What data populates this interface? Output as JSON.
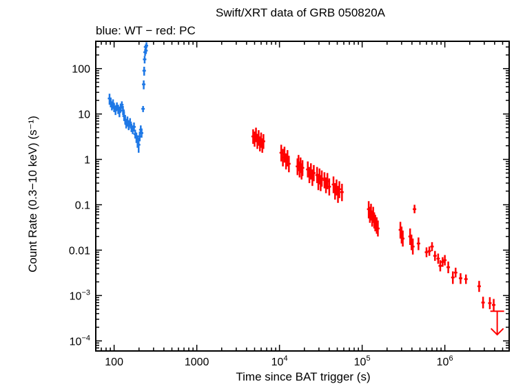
{
  "chart_data": {
    "type": "scatter",
    "title": "Swift/XRT data of GRB 050820A",
    "subtitle": "blue: WT − red: PC",
    "xlabel": "Time since BAT trigger (s)",
    "ylabel": "Count Rate (0.3−10 keV) (s⁻¹)",
    "xscale": "log",
    "yscale": "log",
    "xlim": [
      60,
      6000000
    ],
    "ylim": [
      6e-05,
      400
    ],
    "x_ticks": [
      {
        "value": 100,
        "label": "100"
      },
      {
        "value": 1000,
        "label": "1000"
      },
      {
        "value": 10000,
        "base": "10",
        "exp": "4"
      },
      {
        "value": 100000,
        "base": "10",
        "exp": "5"
      },
      {
        "value": 1000000,
        "base": "10",
        "exp": "6"
      }
    ],
    "y_ticks": [
      {
        "value": 100,
        "label": "100"
      },
      {
        "value": 10,
        "label": "10"
      },
      {
        "value": 1,
        "label": "1"
      },
      {
        "value": 0.1,
        "label": "0.1"
      },
      {
        "value": 0.01,
        "label": "0.01"
      },
      {
        "value": 0.001,
        "base": "10",
        "exp": "−3"
      },
      {
        "value": 0.0001,
        "base": "10",
        "exp": "−4"
      }
    ],
    "series": [
      {
        "name": "WT",
        "color": "#1e78e6",
        "points": [
          [
            88,
            22,
            16,
            28
          ],
          [
            91,
            18,
            14,
            23
          ],
          [
            94,
            15,
            12,
            19
          ],
          [
            97,
            17,
            13,
            21
          ],
          [
            100,
            14,
            11,
            17
          ],
          [
            104,
            12,
            9.5,
            15
          ],
          [
            108,
            15,
            12,
            18
          ],
          [
            112,
            13,
            10,
            16
          ],
          [
            116,
            11,
            8.5,
            14
          ],
          [
            120,
            14,
            11,
            17
          ],
          [
            124,
            16,
            13,
            19
          ],
          [
            128,
            12,
            9.5,
            15
          ],
          [
            132,
            9,
            7,
            11.5
          ],
          [
            136,
            7.5,
            6,
            9.5
          ],
          [
            140,
            6,
            4.8,
            7.5
          ],
          [
            145,
            7,
            5.6,
            8.8
          ],
          [
            150,
            5.5,
            4.4,
            6.8
          ],
          [
            156,
            6.5,
            5.2,
            8.1
          ],
          [
            162,
            5,
            4,
            6.2
          ],
          [
            168,
            4.5,
            3.6,
            5.6
          ],
          [
            174,
            5.2,
            4.1,
            6.5
          ],
          [
            180,
            3.6,
            2.9,
            4.5
          ],
          [
            186,
            3,
            2.3,
            3.9
          ],
          [
            192,
            2.5,
            1.8,
            3.4
          ],
          [
            198,
            2.1,
            1.4,
            3
          ],
          [
            204,
            3.2,
            2.5,
            4.1
          ],
          [
            210,
            4.5,
            3.6,
            5.6
          ],
          [
            215,
            3.8,
            3,
            4.8
          ],
          [
            224,
            13,
            11,
            15
          ],
          [
            228,
            45,
            35,
            55
          ],
          [
            231,
            90,
            70,
            110
          ],
          [
            234,
            160,
            130,
            190
          ],
          [
            237,
            230,
            190,
            270
          ],
          [
            240,
            300,
            260,
            340
          ],
          [
            243,
            250,
            210,
            290
          ],
          [
            246,
            320,
            280,
            380
          ]
        ]
      },
      {
        "name": "PC",
        "color": "#ff0000",
        "points": [
          [
            4800,
            3.2,
            2.2,
            4.6
          ],
          [
            5000,
            2.8,
            1.9,
            4.1
          ],
          [
            5200,
            3.5,
            2.4,
            5
          ],
          [
            5400,
            2.5,
            1.7,
            3.6
          ],
          [
            5600,
            3,
            2,
            4.4
          ],
          [
            5800,
            2.2,
            1.5,
            3.2
          ],
          [
            6000,
            2.7,
            1.8,
            3.9
          ],
          [
            6200,
            2,
            1.4,
            2.9
          ],
          [
            6400,
            2.5,
            1.7,
            3.6
          ],
          [
            10500,
            1.4,
            0.9,
            2.1
          ],
          [
            11000,
            1.1,
            0.7,
            1.7
          ],
          [
            11500,
            1.3,
            0.85,
            1.9
          ],
          [
            12000,
            0.9,
            0.6,
            1.35
          ],
          [
            12500,
            1.1,
            0.7,
            1.6
          ],
          [
            13000,
            0.8,
            0.52,
            1.2
          ],
          [
            16500,
            0.7,
            0.45,
            1.05
          ],
          [
            17000,
            0.85,
            0.55,
            1.25
          ],
          [
            17500,
            0.6,
            0.4,
            0.9
          ],
          [
            18000,
            0.75,
            0.5,
            1.1
          ],
          [
            18500,
            0.55,
            0.36,
            0.82
          ],
          [
            19000,
            0.65,
            0.43,
            0.96
          ],
          [
            22000,
            0.6,
            0.4,
            0.9
          ],
          [
            23000,
            0.45,
            0.3,
            0.68
          ],
          [
            24000,
            0.55,
            0.36,
            0.82
          ],
          [
            25000,
            0.4,
            0.26,
            0.6
          ],
          [
            26000,
            0.5,
            0.33,
            0.75
          ],
          [
            28500,
            0.45,
            0.3,
            0.68
          ],
          [
            29500,
            0.32,
            0.21,
            0.48
          ],
          [
            30500,
            0.42,
            0.28,
            0.63
          ],
          [
            31500,
            0.3,
            0.2,
            0.45
          ],
          [
            32500,
            0.38,
            0.25,
            0.57
          ],
          [
            35000,
            0.35,
            0.23,
            0.52
          ],
          [
            36500,
            0.27,
            0.18,
            0.4
          ],
          [
            38000,
            0.33,
            0.22,
            0.5
          ],
          [
            40000,
            0.25,
            0.16,
            0.38
          ],
          [
            45000,
            0.28,
            0.18,
            0.42
          ],
          [
            47000,
            0.2,
            0.13,
            0.3
          ],
          [
            49000,
            0.24,
            0.16,
            0.36
          ],
          [
            51000,
            0.17,
            0.11,
            0.26
          ],
          [
            53000,
            0.22,
            0.14,
            0.33
          ],
          [
            57000,
            0.19,
            0.12,
            0.29
          ],
          [
            120000,
            0.08,
            0.05,
            0.12
          ],
          [
            124000,
            0.06,
            0.04,
            0.09
          ],
          [
            128000,
            0.07,
            0.045,
            0.105
          ],
          [
            132000,
            0.05,
            0.033,
            0.075
          ],
          [
            136000,
            0.06,
            0.04,
            0.09
          ],
          [
            140000,
            0.045,
            0.03,
            0.068
          ],
          [
            144000,
            0.04,
            0.026,
            0.06
          ],
          [
            150000,
            0.035,
            0.023,
            0.053
          ],
          [
            155000,
            0.03,
            0.02,
            0.045
          ],
          [
            290000,
            0.028,
            0.018,
            0.042
          ],
          [
            300000,
            0.022,
            0.014,
            0.033
          ],
          [
            310000,
            0.018,
            0.012,
            0.027
          ],
          [
            380000,
            0.02,
            0.013,
            0.03
          ],
          [
            395000,
            0.015,
            0.01,
            0.022
          ],
          [
            410000,
            0.012,
            0.008,
            0.018
          ],
          [
            430000,
            0.08,
            0.065,
            0.1
          ],
          [
            480000,
            0.014,
            0.01,
            0.019
          ],
          [
            600000,
            0.009,
            0.007,
            0.0115
          ],
          [
            650000,
            0.0095,
            0.0075,
            0.012
          ],
          [
            700000,
            0.012,
            0.0095,
            0.015
          ],
          [
            760000,
            0.0075,
            0.0058,
            0.0096
          ],
          [
            830000,
            0.0065,
            0.005,
            0.0084
          ],
          [
            880000,
            0.0045,
            0.0034,
            0.006
          ],
          [
            940000,
            0.0055,
            0.0043,
            0.007
          ],
          [
            1000000,
            0.006,
            0.0046,
            0.0078
          ],
          [
            1100000,
            0.0042,
            0.0031,
            0.0056
          ],
          [
            1250000,
            0.0025,
            0.0018,
            0.0034
          ],
          [
            1350000,
            0.0032,
            0.0025,
            0.0041
          ],
          [
            1550000,
            0.0024,
            0.0018,
            0.0031
          ],
          [
            1800000,
            0.0023,
            0.0018,
            0.0029
          ],
          [
            2600000,
            0.0016,
            0.0012,
            0.0021
          ],
          [
            2900000,
            0.0007,
            0.00052,
            0.00094
          ],
          [
            3500000,
            0.00068,
            0.0005,
            0.00092
          ],
          [
            3900000,
            0.00062,
            0.00046,
            0.00084
          ]
        ],
        "upper_limits": [
          [
            4300000,
            0.00045
          ]
        ]
      }
    ]
  }
}
